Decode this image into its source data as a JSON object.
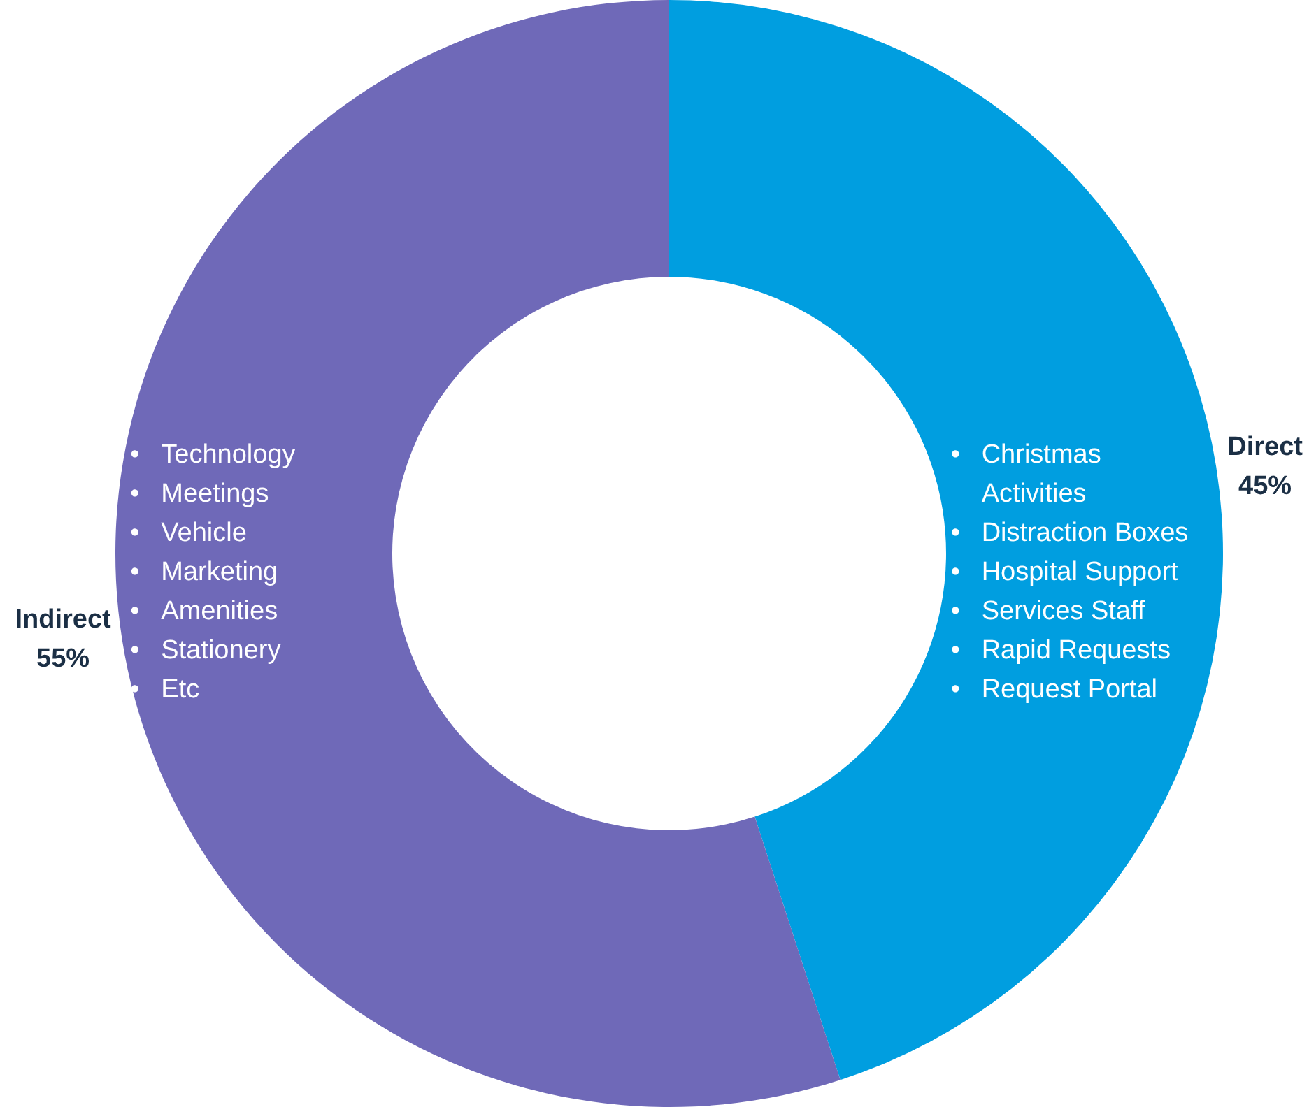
{
  "chart_data": {
    "type": "donut",
    "categories": [
      "Direct",
      "Indirect"
    ],
    "values": [
      45,
      55
    ],
    "colors": [
      "#009ee0",
      "#6f69b8"
    ],
    "value_labels": [
      "45%",
      "55%"
    ],
    "legend": false,
    "annotations": [
      "• Christmas Activities\n• Distraction Boxes\n• Hospital Support\n• Services Staff\n• Rapid Requests\n• Request Portal",
      "• Technology\n• Meetings\n• Vehicle\n• Marketing\n• Amenities\n• Stationery\n• Etc"
    ]
  }
}
